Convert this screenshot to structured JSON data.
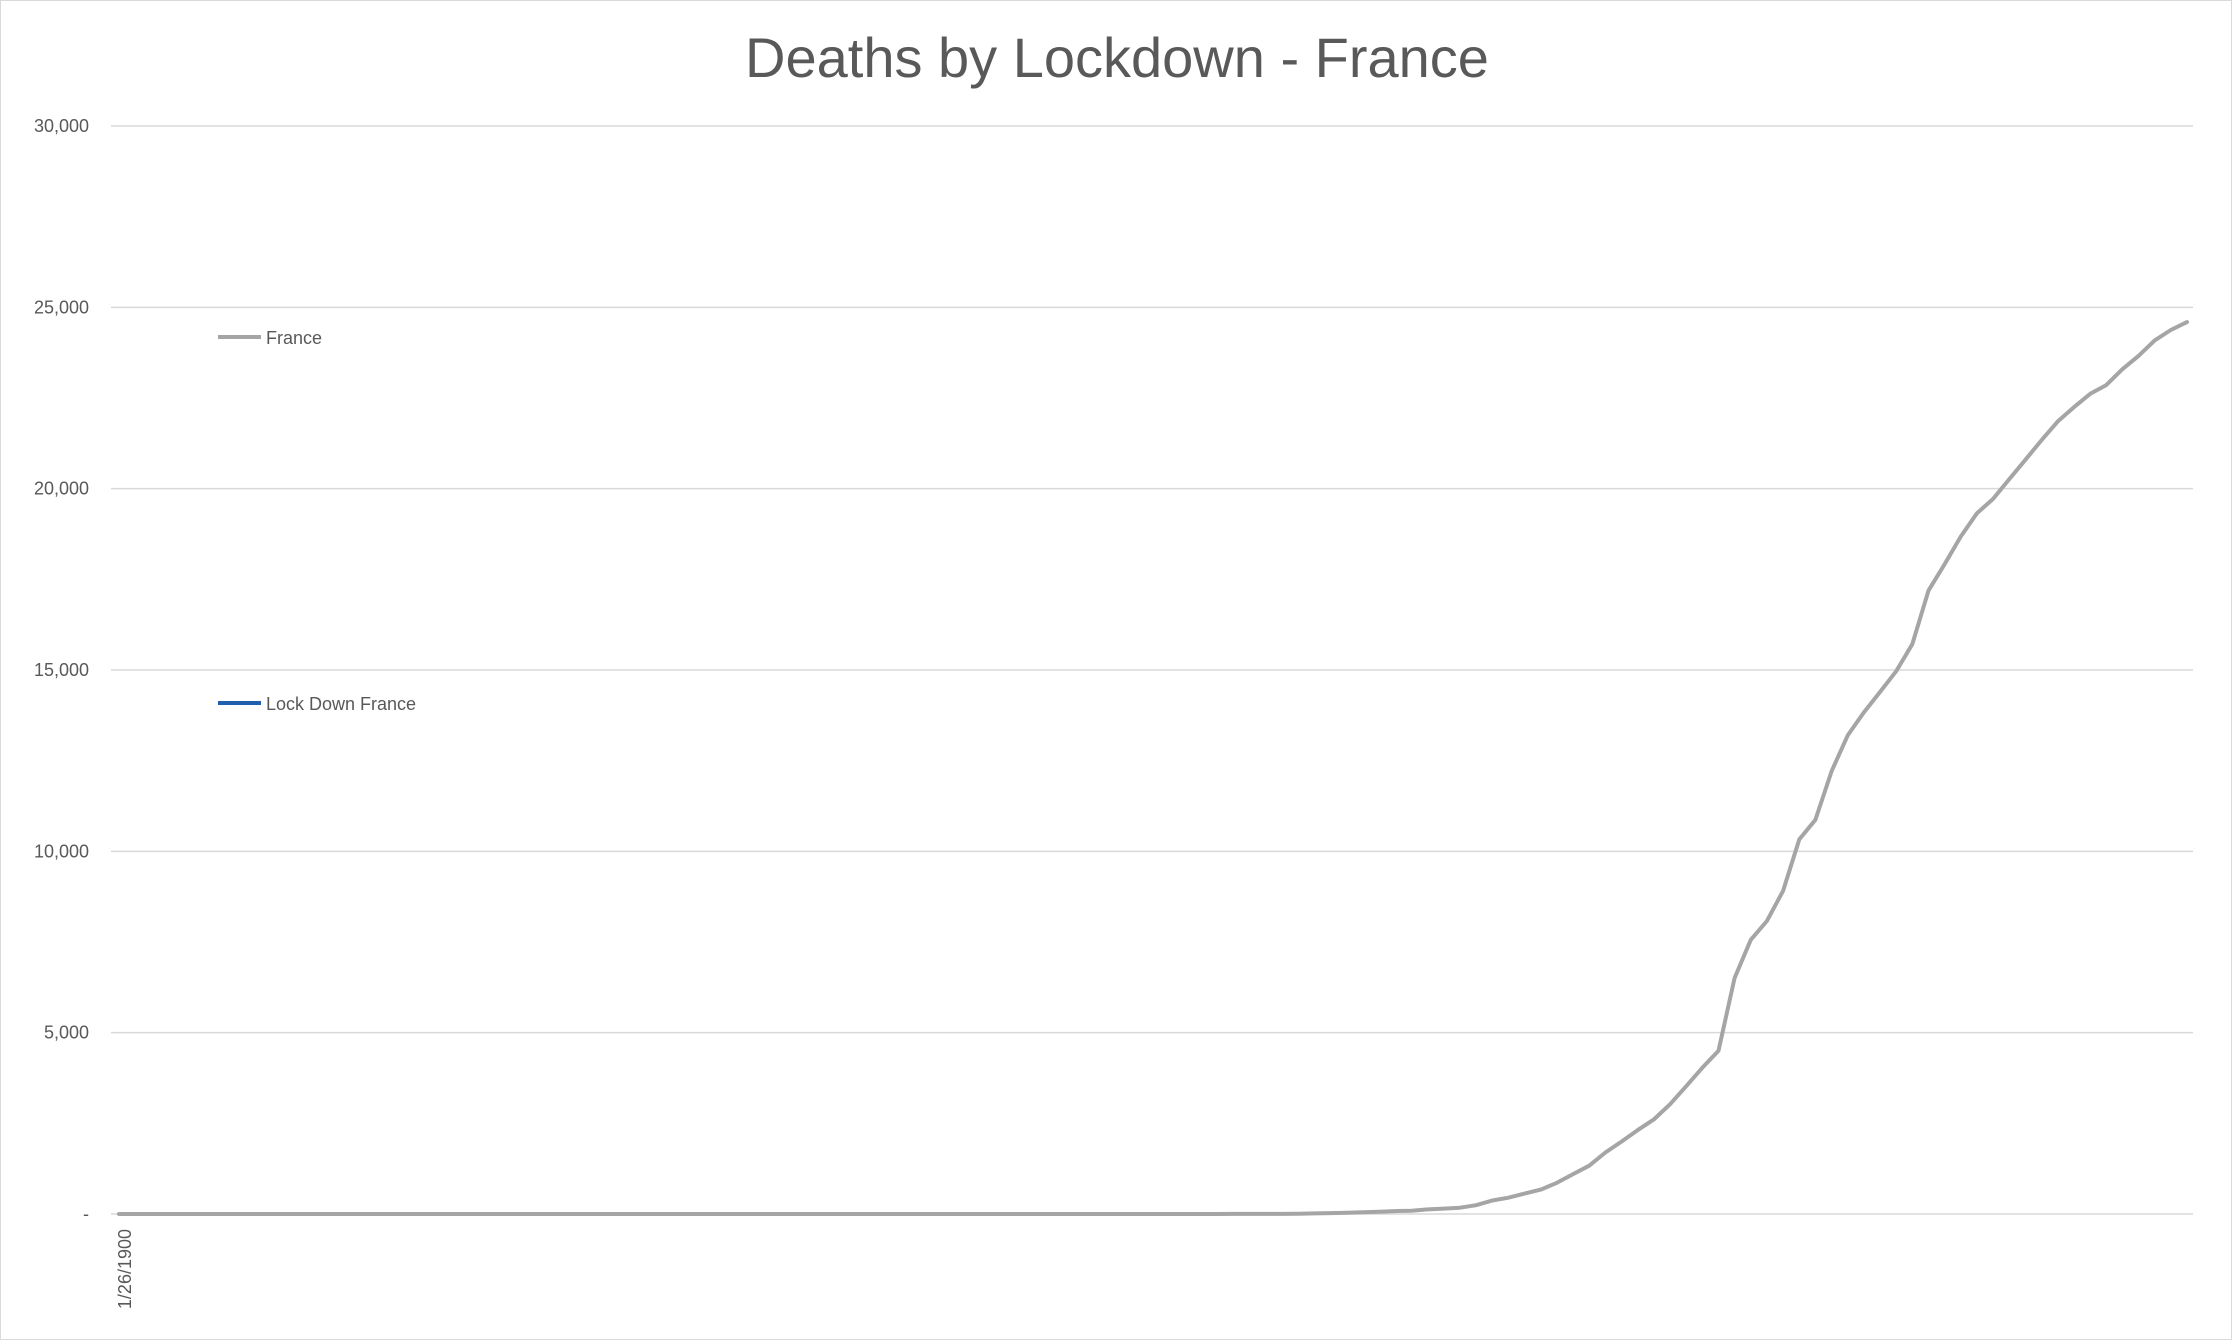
{
  "chart_data": {
    "type": "line",
    "title": "Deaths by Lockdown - France",
    "xlabel": "",
    "ylabel": "",
    "ylim": [
      0,
      30000
    ],
    "yticks": [
      0,
      5000,
      10000,
      15000,
      20000,
      25000,
      30000
    ],
    "ytick_labels": [
      "-",
      "5,000",
      "10,000",
      "15,000",
      "20,000",
      "25,000",
      "30,000"
    ],
    "x_tick_labels": [
      "1/26/1900"
    ],
    "grid": true,
    "legend_position": "left",
    "colors": {
      "France": "#a5a5a5",
      "Lock Down France": "#1f5fad"
    },
    "series": [
      {
        "name": "France",
        "color": "#a5a5a5",
        "values": [
          0,
          0,
          0,
          0,
          0,
          0,
          0,
          0,
          0,
          0,
          0,
          0,
          0,
          0,
          0,
          0,
          0,
          0,
          0,
          0,
          0,
          0,
          0,
          0,
          0,
          0,
          0,
          0,
          0,
          0,
          0,
          0,
          0,
          0,
          0,
          0,
          0,
          0,
          0,
          0,
          0,
          0,
          0,
          0,
          0,
          0,
          0,
          0,
          0,
          0,
          0,
          0,
          0,
          0,
          0,
          0,
          0,
          0,
          0,
          0,
          0,
          0,
          0,
          0,
          0,
          0,
          0,
          1,
          1,
          2,
          2,
          3,
          4,
          9,
          16,
          25,
          33,
          48,
          61,
          79,
          91,
          127,
          148,
          175,
          244,
          372,
          450,
          562,
          674,
          860,
          1100,
          1331,
          1696,
          1995,
          2314,
          2606,
          3024,
          3523,
          4032,
          4503,
          6507,
          7560,
          8078,
          8911,
          10328,
          10869,
          12210,
          13197,
          13832,
          14393,
          14967,
          15712,
          17188,
          17920,
          18681,
          19323,
          19718,
          20265,
          20796,
          21340,
          21856,
          22245,
          22614,
          22856,
          23293,
          23660,
          24087,
          24376,
          24594
        ]
      },
      {
        "name": "Lock Down France",
        "color": "#1f5fad",
        "values": []
      }
    ]
  }
}
